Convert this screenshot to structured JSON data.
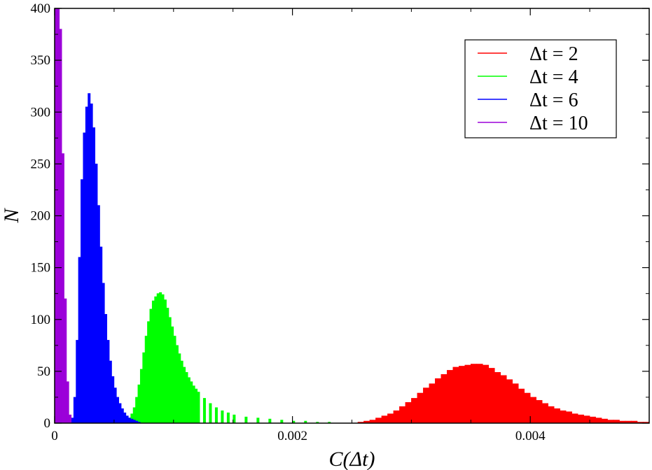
{
  "chart_data": {
    "type": "bar",
    "xlabel": "C(Δt)",
    "ylabel": "N",
    "xlim": [
      0,
      0.005
    ],
    "ylim": [
      0,
      400
    ],
    "x_ticks": [
      0,
      0.002,
      0.004
    ],
    "x_tick_labels": [
      "0",
      "0.002",
      "0.004"
    ],
    "y_ticks": [
      0,
      50,
      100,
      150,
      200,
      250,
      300,
      350,
      400
    ],
    "y_tick_labels": [
      "0",
      "50",
      "100",
      "150",
      "200",
      "250",
      "300",
      "350",
      "400"
    ],
    "grid": false,
    "legend_position": "top-right",
    "bin_width": 1e-05,
    "series": [
      {
        "name": "Δt = 2",
        "color": "#ff0000",
        "x": [
          0.00255,
          0.0026,
          0.00265,
          0.0027,
          0.00275,
          0.0028,
          0.00285,
          0.0029,
          0.00295,
          0.003,
          0.00305,
          0.0031,
          0.00315,
          0.0032,
          0.00325,
          0.0033,
          0.00335,
          0.0034,
          0.00345,
          0.0035,
          0.00355,
          0.0036,
          0.00365,
          0.0037,
          0.00375,
          0.0038,
          0.00385,
          0.0039,
          0.00395,
          0.004,
          0.00405,
          0.0041,
          0.00415,
          0.0042,
          0.00425,
          0.0043,
          0.00435,
          0.0044,
          0.00445,
          0.0045,
          0.00455,
          0.0046,
          0.00465,
          0.0047,
          0.00475,
          0.0048,
          0.00485,
          0.0049,
          0.00495
        ],
        "values": [
          1,
          2,
          3,
          5,
          7,
          9,
          12,
          16,
          20,
          24,
          29,
          34,
          38,
          43,
          47,
          51,
          54,
          55,
          56,
          57,
          57,
          56,
          53,
          49,
          46,
          42,
          38,
          33,
          29,
          25,
          22,
          19,
          16,
          14,
          12,
          11,
          9,
          8,
          7,
          6,
          5,
          4,
          3,
          3,
          2,
          2,
          2,
          1,
          1
        ]
      },
      {
        "name": "Δt = 4",
        "color": "#00ff00",
        "x": [
          0.0006,
          0.00062,
          0.00064,
          0.00066,
          0.00068,
          0.0007,
          0.00072,
          0.00074,
          0.00076,
          0.00078,
          0.0008,
          0.00082,
          0.00084,
          0.00086,
          0.00088,
          0.0009,
          0.00092,
          0.00094,
          0.00096,
          0.00098,
          0.001,
          0.00102,
          0.00104,
          0.00106,
          0.00108,
          0.0011,
          0.00112,
          0.00114,
          0.00116,
          0.00118,
          0.0012,
          0.00125,
          0.0013,
          0.00135,
          0.0014,
          0.00145,
          0.0015,
          0.0016,
          0.0017,
          0.0018,
          0.0019,
          0.002,
          0.0021,
          0.0022,
          0.0023
        ],
        "values": [
          2,
          5,
          9,
          15,
          25,
          37,
          52,
          68,
          84,
          98,
          110,
          118,
          122,
          125,
          126,
          124,
          119,
          111,
          102,
          93,
          84,
          75,
          67,
          60,
          54,
          49,
          44,
          40,
          36,
          33,
          30,
          24,
          19,
          15,
          12,
          10,
          8,
          6,
          5,
          4,
          3,
          2,
          2,
          1,
          1
        ]
      },
      {
        "name": "Δt = 6",
        "color": "#0000ff",
        "x": [
          0.00014,
          0.00016,
          0.00018,
          0.0002,
          0.00022,
          0.00024,
          0.00026,
          0.00028,
          0.0003,
          0.00032,
          0.00034,
          0.00036,
          0.00038,
          0.0004,
          0.00042,
          0.00044,
          0.00046,
          0.00048,
          0.0005,
          0.00052,
          0.00054,
          0.00056,
          0.00058,
          0.0006,
          0.00062,
          0.00064,
          0.00066,
          0.00068,
          0.0007
        ],
        "values": [
          5,
          25,
          80,
          160,
          235,
          280,
          305,
          318,
          308,
          285,
          250,
          210,
          170,
          135,
          105,
          80,
          60,
          45,
          34,
          25,
          19,
          14,
          10,
          7,
          5,
          4,
          3,
          2,
          1
        ]
      },
      {
        "name": "Δt = 10",
        "color": "#9b00d9",
        "x": [
          0.0,
          2e-05,
          4e-05,
          6e-05,
          8e-05,
          0.0001,
          0.00012
        ],
        "values": [
          400,
          400,
          380,
          260,
          120,
          40,
          8
        ]
      }
    ]
  }
}
